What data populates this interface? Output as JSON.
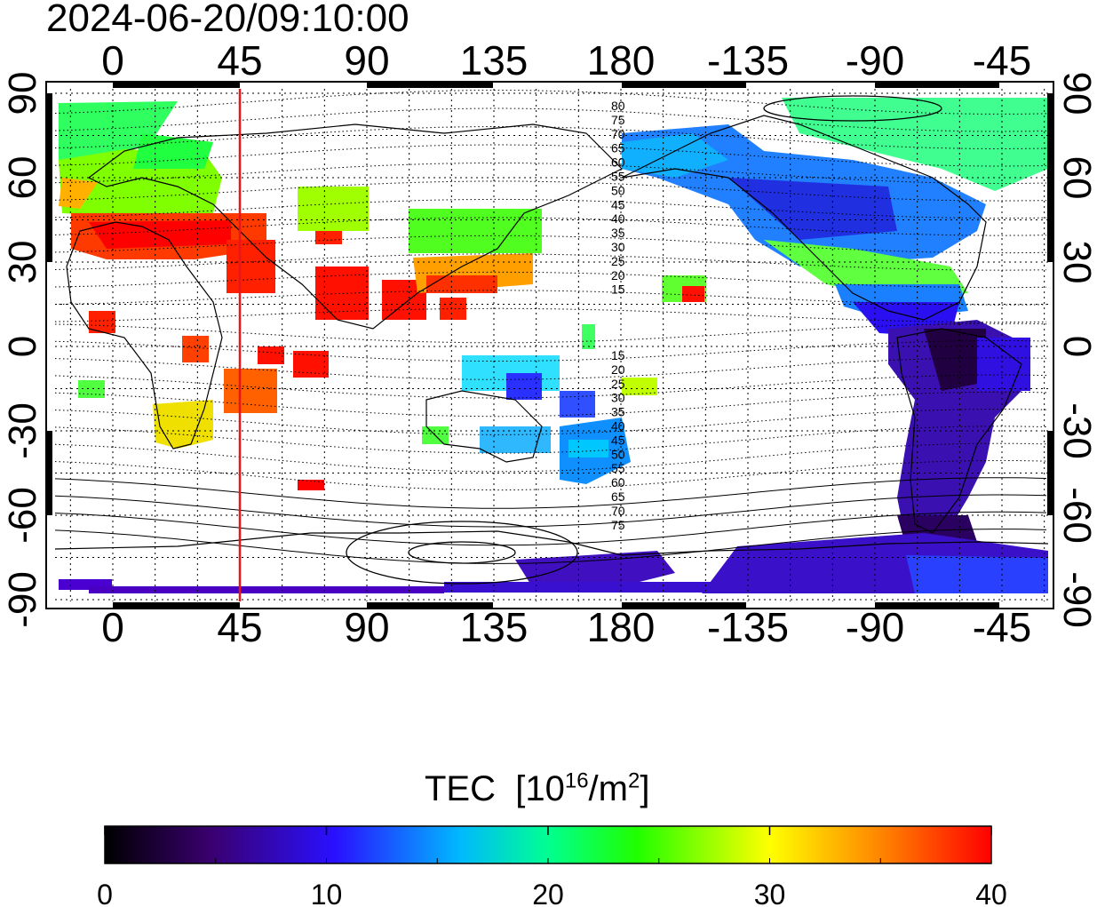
{
  "header": {
    "timestamp": "2024-06-20/09:10:00"
  },
  "map": {
    "top_lon_ticks": [
      "0",
      "45",
      "90",
      "135",
      "180",
      "-135",
      "-90",
      "-45"
    ],
    "bottom_lon_ticks": [
      "0",
      "45",
      "90",
      "135",
      "180",
      "-135",
      "-90",
      "-45"
    ],
    "left_lat_ticks": [
      "90",
      "60",
      "30",
      "0",
      "-30",
      "-60",
      "-90"
    ],
    "right_lat_ticks": [
      "90",
      "60",
      "30",
      "0",
      "-30",
      "-60",
      "-90"
    ],
    "contour_labels_north": [
      "80",
      "75",
      "70",
      "65",
      "60",
      "55",
      "50",
      "45",
      "40",
      "35",
      "30",
      "25",
      "20",
      "15"
    ],
    "contour_labels_south": [
      "15",
      "20",
      "25",
      "30",
      "35",
      "40",
      "45",
      "50",
      "55",
      "60",
      "65",
      "70",
      "75"
    ],
    "marker_line_color": "#e8151b",
    "marker_line_lon": 45,
    "grid": true
  },
  "colorbar": {
    "title": "TEC",
    "unit_open": "[10",
    "unit_exp": "16",
    "unit_mid": "/m",
    "unit_exp2": "2",
    "unit_close": "]",
    "min": 0,
    "max": 40,
    "tick_labels": [
      "0",
      "10",
      "20",
      "30",
      "40"
    ],
    "colors": [
      "#000000",
      "#3a0070",
      "#2000ff",
      "#00e0ff",
      "#00ff00",
      "#ffff00",
      "#ff8000",
      "#ff0000"
    ]
  }
}
